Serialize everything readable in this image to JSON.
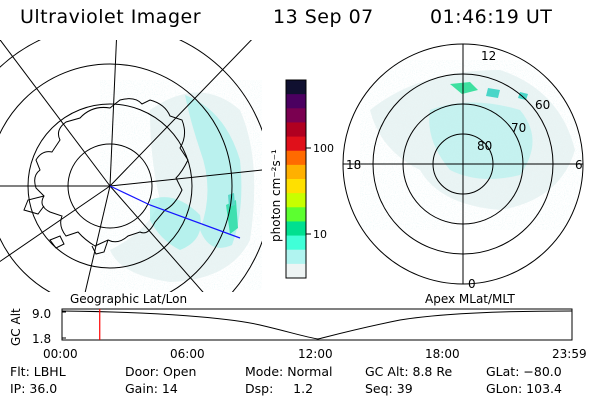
{
  "header": {
    "instrument": "Ultraviolet Imager",
    "date": "13 Sep 07",
    "time": "01:46:19 UT"
  },
  "left_map": {
    "caption": "Geographic Lat/Lon"
  },
  "right_map": {
    "caption": "Apex MLat/MLT",
    "mlt_labels": {
      "top": "12",
      "left": "18",
      "right": "6",
      "bottom": "0"
    },
    "lat_labels": [
      "80",
      "70",
      "60"
    ]
  },
  "colorbar": {
    "unit_label": "photon cm⁻²s⁻¹",
    "ticks": [
      "100",
      "10"
    ],
    "colors": [
      "#101030",
      "#4b0060",
      "#7a0050",
      "#b00020",
      "#e0101a",
      "#ff6a00",
      "#ffb000",
      "#ffe000",
      "#c8ff00",
      "#5cff30",
      "#00e090",
      "#40ffd8",
      "#b0f4f0",
      "#eef4f4"
    ]
  },
  "timeline": {
    "axis_title": "GC Alt",
    "ymax": "9.0",
    "ymin": "1.8",
    "x_ticks": [
      "00:00",
      "06:00",
      "12:00",
      "18:00",
      "23:59"
    ],
    "current_time_fraction": 0.074,
    "marker_color": "#ff0000"
  },
  "info": {
    "col1": [
      "Flt: LBHL",
      "IP: 36.0"
    ],
    "col2": [
      "Door: Open",
      "Gain: 14"
    ],
    "col3": [
      "Mode: Normal",
      "Dsp:     1.2"
    ],
    "col4": [
      "GC Alt: 8.8 Re",
      "Seq: 39"
    ],
    "col5": [
      "GLat: −80.0",
      "GLon: 103.4"
    ]
  }
}
